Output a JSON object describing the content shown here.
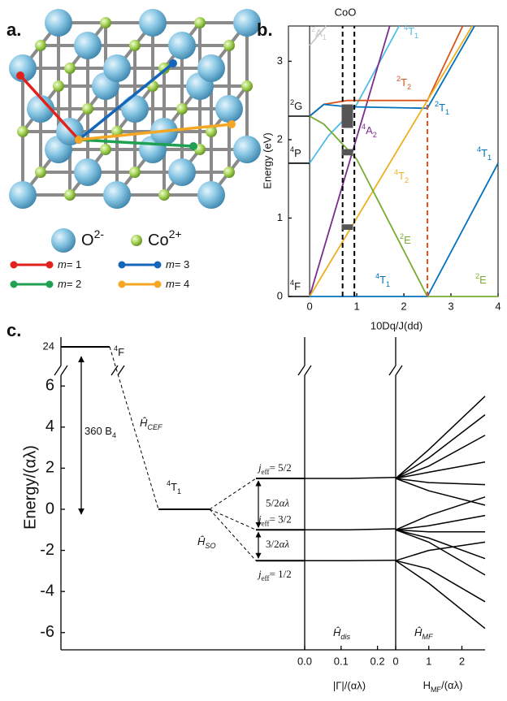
{
  "panel_a": {
    "label": "a.",
    "atoms": [
      {
        "name": "O",
        "charge": "2-",
        "color": "#86c5e3"
      },
      {
        "name": "Co",
        "charge": "2+",
        "color": "#a9d65a"
      }
    ],
    "bonds": [
      {
        "var": "m",
        "text": "= 1",
        "color": "#e3211c"
      },
      {
        "var": "m",
        "text": "= 2",
        "color": "#1fa052"
      },
      {
        "var": "m",
        "text": "= 3",
        "color": "#1565b8"
      },
      {
        "var": "m",
        "text": "= 4",
        "color": "#f5a623"
      }
    ]
  },
  "chart_data": [
    {
      "type": "line",
      "label": "b.",
      "title": "CoO",
      "xlabel": "10Dq/J(dd)",
      "ylabel": "Energy (eV)",
      "xlim": [
        -0.45,
        4
      ],
      "ylim": [
        0,
        3.45
      ],
      "xticks": [
        0,
        1,
        2,
        3,
        4
      ],
      "yticks": [
        0,
        1,
        2,
        3
      ],
      "free_ions": [
        {
          "sup": "2",
          "base": "G",
          "value": 2.3
        },
        {
          "sup": "4",
          "base": "P",
          "value": 1.7
        },
        {
          "sup": "4",
          "base": "F",
          "value": 0
        }
      ],
      "series": [
        {
          "sup": "2",
          "base": "A",
          "sub": "1",
          "color": "#c8c8c8",
          "x": [
            0,
            0.35
          ],
          "values": [
            3.2,
            3.45
          ]
        },
        {
          "sup": "4",
          "base": "T",
          "sub": "1",
          "color": "#4dbde8",
          "x": [
            0,
            0.4,
            0.8,
            1.0,
            1.9
          ],
          "values": [
            1.7,
            2.05,
            2.3,
            2.45,
            3.45
          ]
        },
        {
          "sup": "4",
          "base": "A",
          "sub": "2",
          "color": "#7b2d8e",
          "x": [
            0,
            1.7
          ],
          "values": [
            0,
            3.45
          ]
        },
        {
          "sup": "2",
          "base": "T",
          "sub": "2",
          "color": "#d95319",
          "x": [
            0,
            0.3,
            0.8,
            2.5,
            3.25
          ],
          "values": [
            2.3,
            2.45,
            2.5,
            2.5,
            3.45
          ]
        },
        {
          "sup": "2",
          "base": "T",
          "sub": "1",
          "color": "#0072bd",
          "x": [
            0,
            0.3,
            0.8,
            2.5,
            3.5
          ],
          "values": [
            2.3,
            2.45,
            2.42,
            2.4,
            3.45
          ]
        },
        {
          "sup": "4",
          "base": "T",
          "sub": "2",
          "color": "#edb120",
          "x": [
            0,
            2.5,
            3.45
          ],
          "values": [
            0,
            2.5,
            3.45
          ]
        },
        {
          "sup": "2",
          "base": "E",
          "color": "#77ac30",
          "x": [
            0,
            0.3,
            1.0,
            2.5
          ],
          "values": [
            2.3,
            2.2,
            1.75,
            0
          ]
        },
        {
          "sup": "4",
          "base": "T",
          "sub": "1",
          "color": "#0072bd",
          "x": [
            0,
            2.5
          ],
          "values": [
            0,
            0
          ]
        },
        {
          "sup": "2",
          "base": "E",
          "color": "#77ac30",
          "x": [
            2.5,
            4
          ],
          "values": [
            0,
            0
          ]
        },
        {
          "sup": "4",
          "base": "T",
          "sub": "1",
          "color": "#0072bd",
          "x": [
            2.5,
            4
          ],
          "values": [
            0,
            1.7
          ]
        }
      ],
      "dashed": [
        {
          "x": 0.7,
          "color": "#000000"
        },
        {
          "x": 0.95,
          "color": "#000000"
        },
        {
          "x": 2.5,
          "color": "#e8501c",
          "top": 2.5
        }
      ],
      "boxes": [
        {
          "x": 0.8,
          "y": [
            2.15,
            2.45
          ]
        },
        {
          "x": 0.8,
          "y": [
            1.8,
            1.88
          ]
        },
        {
          "x": 0.8,
          "y": [
            0.85,
            0.92
          ]
        }
      ]
    },
    {
      "type": "levels",
      "label": "c.",
      "ylabel": "Energy/(αλ)",
      "color": "#000000",
      "ylim": [
        -6.8,
        6.6
      ],
      "yticks": [
        -6,
        -4,
        -2,
        0,
        2,
        4,
        6
      ],
      "break_tick": 24,
      "free_ion": {
        "sup": "4",
        "base": "F",
        "value": 24
      },
      "cubic": {
        "sup": "4",
        "base": "T",
        "sub": "1",
        "value": 0
      },
      "crystal_field": {
        "text": "360 B",
        "sub": "4"
      },
      "cef": {
        "symbol": "Ĥ",
        "sub": "CEF"
      },
      "so": {
        "symbol": "Ĥ",
        "sub": "SO"
      },
      "j_levels": [
        {
          "value": 1.5,
          "text": "j",
          "sub": "eff",
          "rhs": "= 5/2"
        },
        {
          "value": -1,
          "text": "j",
          "sub": "eff",
          "rhs": "= 3/2"
        },
        {
          "value": -2.5,
          "text": "j",
          "sub": "eff",
          "rhs": "= 1/2"
        }
      ],
      "gaps": [
        {
          "coef": "5/2",
          "unit": "αλ"
        },
        {
          "coef": "3/2",
          "unit": "αλ"
        }
      ],
      "disorder": {
        "symbol": "Ĥ",
        "sub": "dis",
        "xlabel": "|Γ|/(αλ)",
        "xlim": [
          0,
          0.25
        ],
        "xticks": [
          {
            "value": 0,
            "label": "0.0"
          },
          0.1,
          0.2
        ],
        "series": [
          {
            "x": [
              0,
              0.12,
              0.25
            ],
            "values": [
              1.5,
              1.5,
              1.55
            ]
          },
          {
            "x": [
              0,
              0.12,
              0.25
            ],
            "values": [
              -1,
              -1,
              -0.95
            ]
          },
          {
            "x": [
              0,
              0.12,
              0.25
            ],
            "values": [
              -2.5,
              -2.5,
              -2.48
            ]
          }
        ]
      },
      "mean_field": {
        "symbol": "Ĥ",
        "sub": "MF",
        "xlabel": "H",
        "xlabel_sub": "MF",
        "xlabel_rest": "/(αλ)",
        "xlim": [
          0,
          2.7
        ],
        "xticks": [
          0,
          1,
          2
        ],
        "series": [
          {
            "x": [
              0,
              1,
              2.7
            ],
            "values": [
              1.5,
              2.9,
              5.5
            ]
          },
          {
            "x": [
              0,
              1,
              2.7
            ],
            "values": [
              1.5,
              2.5,
              4.6
            ]
          },
          {
            "x": [
              0,
              1,
              2.7
            ],
            "values": [
              1.5,
              2.1,
              3.6
            ]
          },
          {
            "x": [
              0,
              1,
              2.7
            ],
            "values": [
              1.5,
              1.8,
              2.3
            ]
          },
          {
            "x": [
              0,
              1,
              2.7
            ],
            "values": [
              1.5,
              1.3,
              1.2
            ]
          },
          {
            "x": [
              0,
              1,
              2.7
            ],
            "values": [
              1.5,
              0.9,
              0.2
            ]
          },
          {
            "x": [
              0,
              1,
              2.7
            ],
            "values": [
              -1,
              -0.3,
              0.6
            ]
          },
          {
            "x": [
              0,
              1,
              2.7
            ],
            "values": [
              -1,
              -0.8,
              -0.3
            ]
          },
          {
            "x": [
              0,
              1,
              2.7
            ],
            "values": [
              -1,
              -1.1,
              -1.1
            ]
          },
          {
            "x": [
              0,
              1,
              2.7
            ],
            "values": [
              -1,
              -1.4,
              -2.4
            ]
          },
          {
            "x": [
              0,
              1,
              2.7
            ],
            "values": [
              -1,
              -1.6,
              -3.2
            ]
          },
          {
            "x": [
              0,
              1,
              2.7
            ],
            "values": [
              -2.5,
              -2,
              -1.6
            ]
          },
          {
            "x": [
              0,
              1,
              2.7
            ],
            "values": [
              -2.5,
              -2.9,
              -4.5
            ]
          },
          {
            "x": [
              0,
              1,
              2.7
            ],
            "values": [
              -2.5,
              -3.6,
              -5.8
            ]
          }
        ]
      }
    }
  ]
}
